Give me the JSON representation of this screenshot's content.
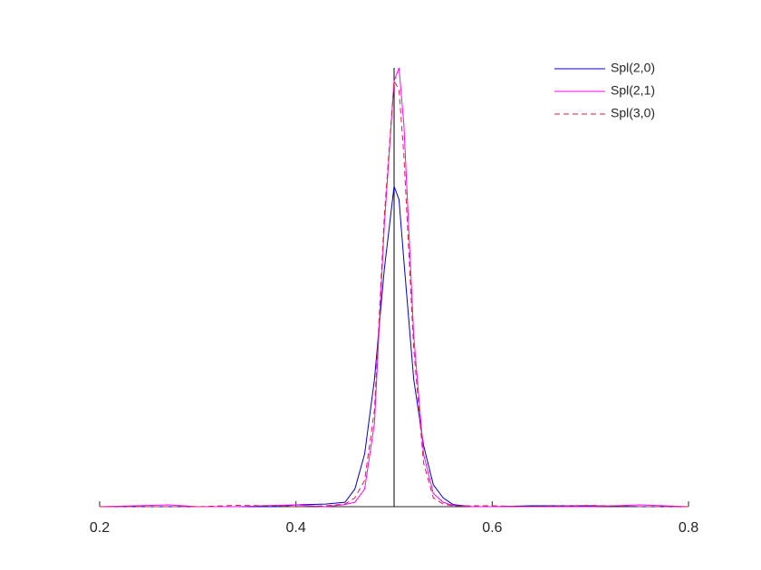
{
  "chart_data": {
    "type": "line",
    "x": [
      0.2,
      0.27,
      0.3,
      0.34,
      0.38,
      0.4,
      0.43,
      0.45,
      0.46,
      0.47,
      0.48,
      0.49,
      0.5,
      0.505,
      0.51,
      0.52,
      0.53,
      0.54,
      0.55,
      0.56,
      0.58,
      0.6,
      0.64,
      0.7,
      0.75,
      0.8
    ],
    "series": [
      {
        "name": "Spl(2,0)",
        "color": "#0000cc",
        "linestyle": "solid",
        "values": [
          0,
          0,
          0,
          0,
          0,
          0.004,
          0.006,
          0.01,
          0.04,
          0.12,
          0.29,
          0.54,
          0.73,
          0.7,
          0.56,
          0.29,
          0.14,
          0.05,
          0.02,
          0.005,
          0,
          0,
          0.002,
          0.002,
          0,
          0
        ]
      },
      {
        "name": "Spl(2,1)",
        "color": "#ff00ff",
        "linestyle": "solid",
        "values": [
          0,
          0.004,
          0,
          0,
          0.003,
          0.004,
          0,
          0.005,
          0.01,
          0.04,
          0.19,
          0.64,
          0.97,
          1.0,
          0.87,
          0.39,
          0.12,
          0.03,
          0.01,
          0.003,
          0,
          0,
          0,
          0,
          0.004,
          0
        ]
      },
      {
        "name": "Spl(3,0)",
        "color": "#d6203c",
        "linestyle": "dashed",
        "values": [
          0,
          0,
          0,
          0.003,
          0.002,
          0,
          0.002,
          0.006,
          0.02,
          0.06,
          0.22,
          0.66,
          0.97,
          0.95,
          0.8,
          0.36,
          0.1,
          0.02,
          0.006,
          0.002,
          0.002,
          0.002,
          0,
          0.003,
          0,
          0
        ]
      }
    ],
    "xlim": [
      0.2,
      0.8
    ],
    "xticks": [
      0.2,
      0.4,
      0.6,
      0.8
    ],
    "ylim": [
      0,
      1
    ],
    "vline": 0.5,
    "legend": "top-right"
  }
}
